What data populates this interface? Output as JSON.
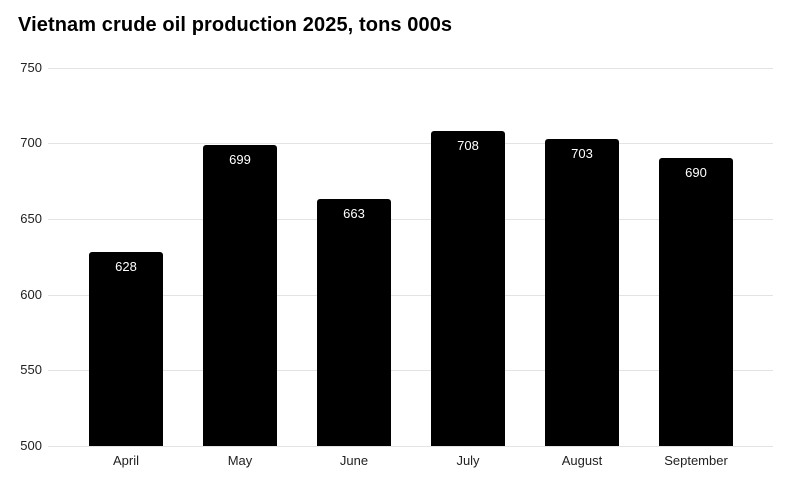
{
  "chart_data": {
    "type": "bar",
    "title": "Vietnam crude oil production 2025, tons 000s",
    "categories": [
      "April",
      "May",
      "June",
      "July",
      "August",
      "September"
    ],
    "values": [
      628,
      699,
      663,
      708,
      703,
      690
    ],
    "xlabel": "",
    "ylabel": "",
    "ylim": [
      500,
      750
    ],
    "yticks": [
      500,
      550,
      600,
      650,
      700,
      750
    ],
    "grid": true,
    "legend_position": "none",
    "value_labels_shown": true,
    "colors": {
      "bar": "#000000",
      "value_label": "#ffffff",
      "gridline": "#e3e3e3",
      "axis_label": "#222222",
      "title": "#000000",
      "background": "#ffffff"
    }
  }
}
